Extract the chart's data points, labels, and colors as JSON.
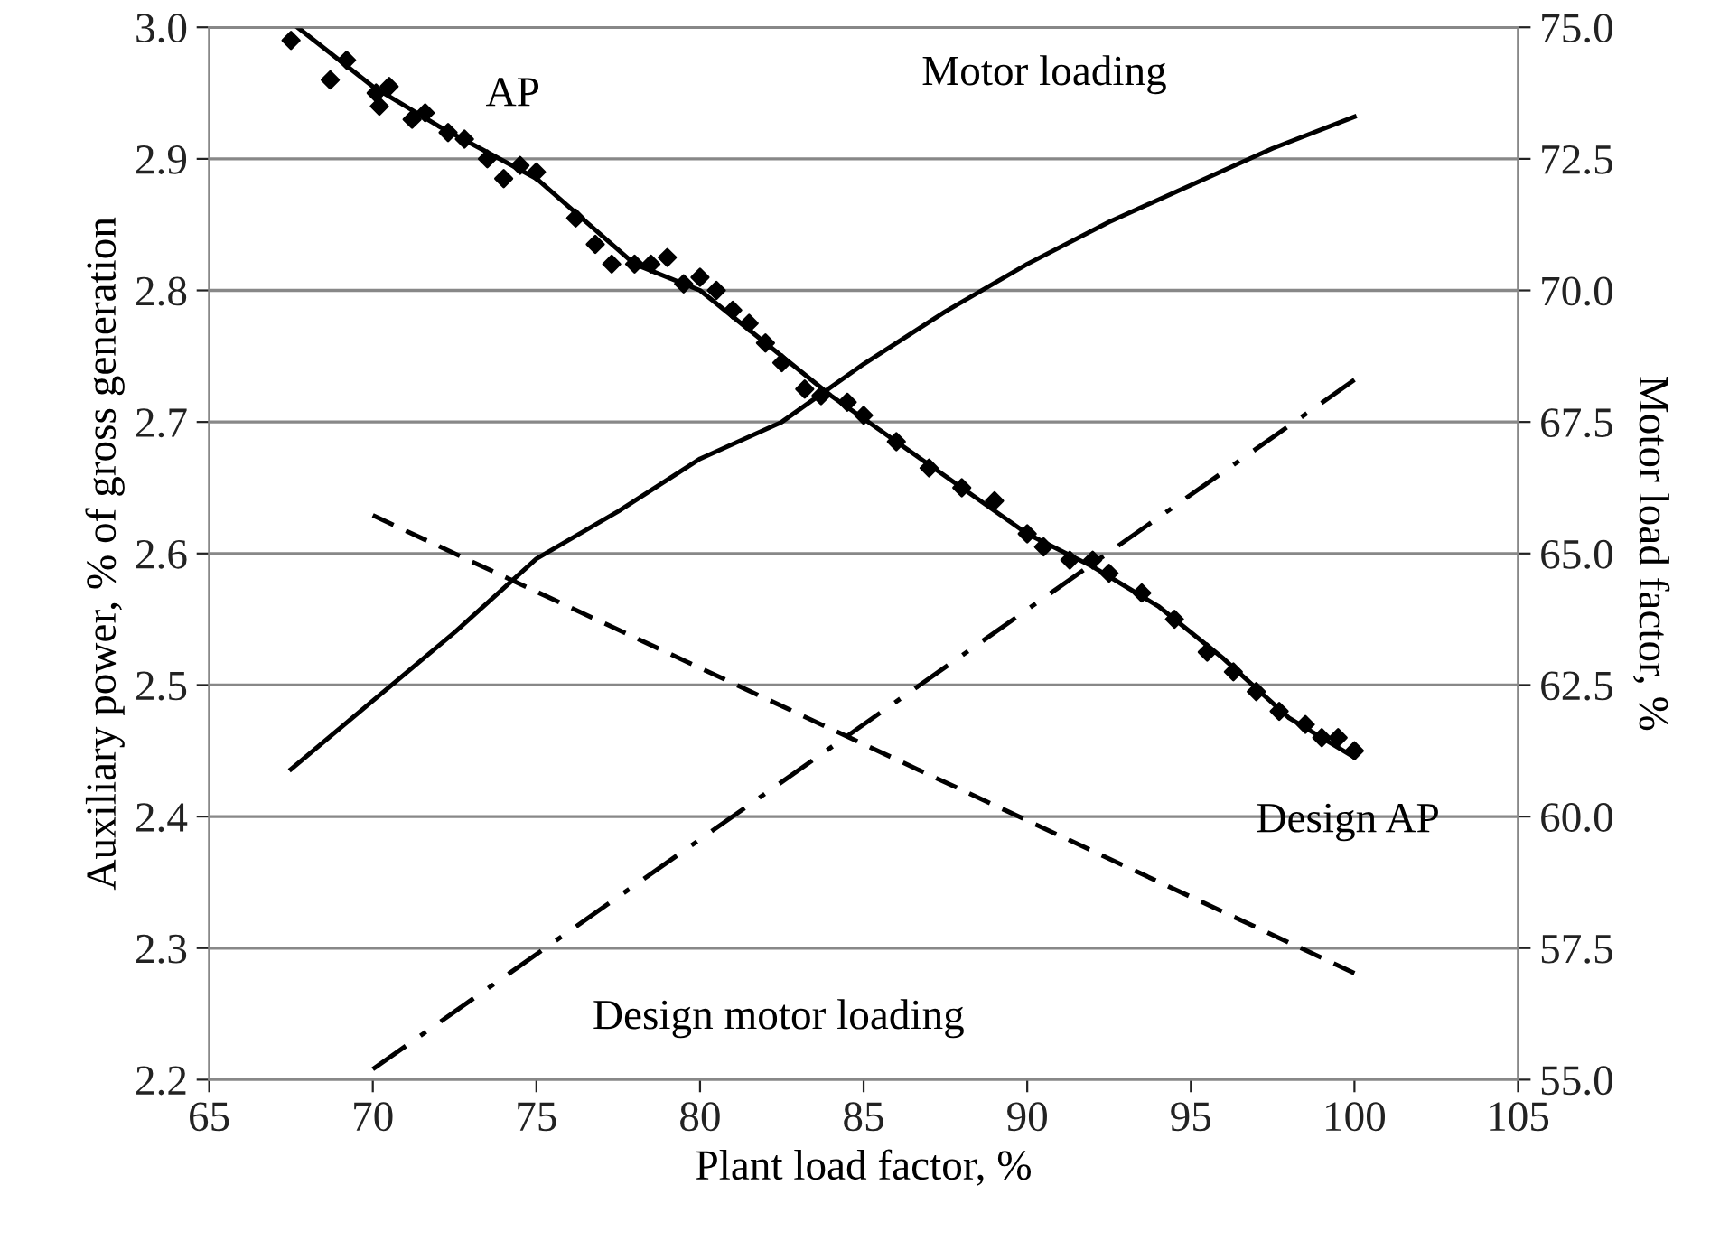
{
  "chart_data": {
    "type": "line",
    "xlabel": "Plant load factor, %",
    "ylabel": "Auxiliary power, % of gross generation",
    "y2label": "Motor load factor, %",
    "xlim": [
      65,
      105
    ],
    "xticks": [
      65,
      70,
      75,
      80,
      85,
      90,
      95,
      100,
      105
    ],
    "ylim": [
      2.2,
      3.0
    ],
    "yticks": [
      {
        "value": 2.2,
        "label": "2.2"
      },
      {
        "value": 2.3,
        "label": "2.3"
      },
      {
        "value": 2.4,
        "label": "2.4"
      },
      {
        "value": 2.5,
        "label": "2.5"
      },
      {
        "value": 2.6,
        "label": "2.6"
      },
      {
        "value": 2.7,
        "label": "2.7"
      },
      {
        "value": 2.8,
        "label": "2.8"
      },
      {
        "value": 2.9,
        "label": "2.9"
      },
      {
        "value": 3.0,
        "label": "3.0"
      }
    ],
    "y2lim": [
      55,
      75
    ],
    "y2ticks": [
      {
        "value": 55,
        "label": "55.0"
      },
      {
        "value": 57.5,
        "label": "57.5"
      },
      {
        "value": 60,
        "label": "60.0"
      },
      {
        "value": 62.5,
        "label": "62.5"
      },
      {
        "value": 65,
        "label": "65.0"
      },
      {
        "value": 67.5,
        "label": "67.5"
      },
      {
        "value": 70,
        "label": "70.0"
      },
      {
        "value": 72.5,
        "label": "72.5"
      },
      {
        "value": 75,
        "label": "75.0"
      }
    ],
    "grid": "y",
    "series": [
      {
        "type": "scatter",
        "color": "#000000",
        "marker": "diamond",
        "x": [
          67.5,
          68.7,
          69.2,
          70.1,
          70.2,
          70.5,
          71.2,
          71.6,
          72.3,
          72.8,
          73.5,
          74,
          74.5,
          75,
          76.2,
          76.8,
          77.3,
          78,
          78.5,
          79,
          79.5,
          80,
          80.5,
          81,
          81.5,
          82,
          82.5,
          83.2,
          83.7,
          84.5,
          85,
          86,
          87,
          88,
          89,
          90,
          90.5,
          91.3,
          92,
          92.5,
          93.5,
          94.5,
          95.5,
          96.3,
          97,
          97.7,
          98.5,
          99,
          99.5,
          100
        ],
        "values": [
          2.99,
          2.96,
          2.975,
          2.95,
          2.94,
          2.955,
          2.93,
          2.935,
          2.92,
          2.915,
          2.9,
          2.885,
          2.895,
          2.89,
          2.855,
          2.835,
          2.82,
          2.82,
          2.82,
          2.825,
          2.805,
          2.81,
          2.8,
          2.785,
          2.775,
          2.76,
          2.745,
          2.725,
          2.72,
          2.715,
          2.705,
          2.685,
          2.665,
          2.65,
          2.64,
          2.615,
          2.605,
          2.595,
          2.595,
          2.585,
          2.57,
          2.55,
          2.525,
          2.51,
          2.495,
          2.48,
          2.47,
          2.46,
          2.46,
          2.45
        ]
      },
      {
        "color": "#000000",
        "line_style": "solid",
        "x": [
          67.7,
          70,
          72,
          75,
          78,
          80,
          82,
          84,
          86,
          88,
          90,
          92,
          94,
          96,
          98,
          100
        ],
        "values": [
          3.0,
          2.955,
          2.925,
          2.885,
          2.82,
          2.8,
          2.76,
          2.72,
          2.685,
          2.65,
          2.615,
          2.59,
          2.56,
          2.52,
          2.475,
          2.445
        ]
      },
      {
        "color": "#000000",
        "line_style": "solid",
        "axis": "y2",
        "x": [
          67.5,
          70,
          72.5,
          75,
          77.5,
          80,
          82.5,
          85,
          87.5,
          90,
          92.5,
          95,
          97.5,
          100
        ],
        "values": [
          60.9,
          62.2,
          63.5,
          64.9,
          65.8,
          66.8,
          67.5,
          68.6,
          69.6,
          70.5,
          71.3,
          72.0,
          72.7,
          73.3
        ]
      },
      {
        "color": "#000000",
        "line_style": "dashed",
        "x": [
          70,
          100
        ],
        "values": [
          2.629,
          2.281
        ]
      },
      {
        "color": "#000000",
        "line_style": "dashdot",
        "axis": "y2",
        "x": [
          70,
          100
        ],
        "values": [
          55.2,
          68.3
        ]
      }
    ],
    "annotations": [
      "AP",
      "Motor loading",
      "Design AP",
      "Design motor loading"
    ]
  }
}
